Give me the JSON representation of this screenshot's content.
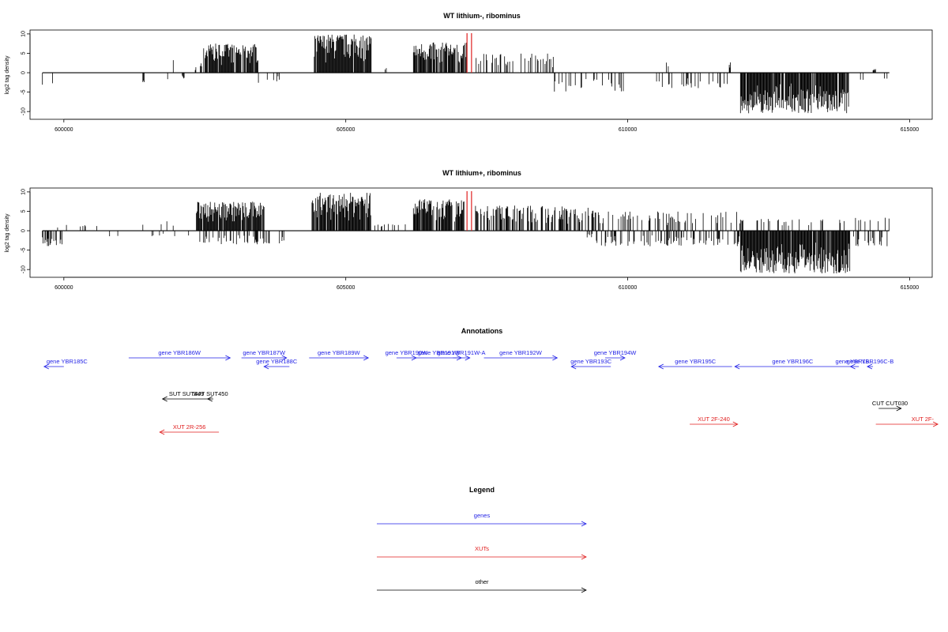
{
  "chart_data": [
    {
      "type": "bar",
      "title": "WT lithium-, ribominus",
      "ylabel": "log2 tag density",
      "xlabel": "",
      "xlim": [
        599400,
        615400
      ],
      "ylim": [
        -12,
        11
      ],
      "x_ticks": [
        "600000",
        "605000",
        "610000",
        "615000"
      ],
      "y_ticks": [
        "10",
        "5",
        "0",
        "-5",
        "-10"
      ],
      "baseline": 0,
      "highlight_color": "#e02020",
      "highlight_positions": [
        607150,
        607230
      ],
      "segments": [
        {
          "start": 599620,
          "end": 599850,
          "sign": -1,
          "max": 3.2,
          "density": 0.08
        },
        {
          "start": 601400,
          "end": 601430,
          "sign": -1,
          "max": 2.5,
          "density": 1
        },
        {
          "start": 601840,
          "end": 601850,
          "sign": -1,
          "max": 2.5,
          "density": 1
        },
        {
          "start": 601940,
          "end": 601950,
          "sign": 1,
          "max": 3.5,
          "density": 1
        },
        {
          "start": 602100,
          "end": 602140,
          "sign": -1,
          "max": 1.5,
          "density": 1
        },
        {
          "start": 602330,
          "end": 602350,
          "sign": 1,
          "max": 1.8,
          "density": 1
        },
        {
          "start": 602420,
          "end": 602450,
          "sign": 1,
          "max": 2.5,
          "density": 1
        },
        {
          "start": 602480,
          "end": 603450,
          "sign": 1,
          "max": 7.5,
          "density": 0.9
        },
        {
          "start": 603450,
          "end": 604100,
          "sign": -1,
          "max": 3.2,
          "density": 0.1
        },
        {
          "start": 604430,
          "end": 605450,
          "sign": 1,
          "max": 10,
          "density": 0.95
        },
        {
          "start": 605550,
          "end": 605800,
          "sign": 1,
          "max": 1.5,
          "density": 0.1
        },
        {
          "start": 606200,
          "end": 607150,
          "sign": 1,
          "max": 7.8,
          "density": 0.8
        },
        {
          "start": 607300,
          "end": 608700,
          "sign": 1,
          "max": 5,
          "density": 0.3
        },
        {
          "start": 608700,
          "end": 609950,
          "sign": -1,
          "max": 5,
          "density": 0.15
        },
        {
          "start": 609800,
          "end": 610800,
          "sign": 1,
          "max": 3,
          "density": 0.03
        },
        {
          "start": 610500,
          "end": 611800,
          "sign": -1,
          "max": 4,
          "density": 0.2
        },
        {
          "start": 611800,
          "end": 611830,
          "sign": 1,
          "max": 3,
          "density": 1
        },
        {
          "start": 612000,
          "end": 613920,
          "sign": -1,
          "max": 10.5,
          "density": 0.95
        },
        {
          "start": 614050,
          "end": 614600,
          "sign": -1,
          "max": 2,
          "density": 0.05
        },
        {
          "start": 614350,
          "end": 614400,
          "sign": 1,
          "max": 1,
          "density": 1
        }
      ]
    },
    {
      "type": "bar",
      "title": "WT lithium+, ribominus",
      "ylabel": "log2 tag density",
      "xlabel": "",
      "xlim": [
        599400,
        615400
      ],
      "ylim": [
        -12,
        11
      ],
      "x_ticks": [
        "600000",
        "605000",
        "610000",
        "615000"
      ],
      "y_ticks": [
        "10",
        "5",
        "0",
        "-5",
        "-10"
      ],
      "baseline": 0,
      "highlight_color": "#e02020",
      "highlight_positions": [
        607150,
        607230
      ],
      "segments": [
        {
          "start": 599620,
          "end": 600000,
          "sign": -1,
          "max": 4,
          "density": 0.6
        },
        {
          "start": 599620,
          "end": 600600,
          "sign": 1,
          "max": 1.5,
          "density": 0.1
        },
        {
          "start": 600800,
          "end": 602300,
          "sign": -1,
          "max": 1.5,
          "density": 0.05
        },
        {
          "start": 601400,
          "end": 602300,
          "sign": 1,
          "max": 2.5,
          "density": 0.05
        },
        {
          "start": 602350,
          "end": 603550,
          "sign": 1,
          "max": 7.5,
          "density": 0.9
        },
        {
          "start": 602400,
          "end": 604000,
          "sign": -1,
          "max": 3.5,
          "density": 0.3
        },
        {
          "start": 604400,
          "end": 605450,
          "sign": 1,
          "max": 9.8,
          "density": 0.95
        },
        {
          "start": 605450,
          "end": 606100,
          "sign": 1,
          "max": 1.8,
          "density": 0.1
        },
        {
          "start": 606200,
          "end": 607100,
          "sign": 1,
          "max": 8.2,
          "density": 0.9
        },
        {
          "start": 607300,
          "end": 609400,
          "sign": 1,
          "max": 6.5,
          "density": 0.5
        },
        {
          "start": 609000,
          "end": 609400,
          "sign": -1,
          "max": 2,
          "density": 0.1
        },
        {
          "start": 609400,
          "end": 612000,
          "sign": 1,
          "max": 5,
          "density": 0.25
        },
        {
          "start": 609400,
          "end": 612000,
          "sign": -1,
          "max": 4,
          "density": 0.35
        },
        {
          "start": 612000,
          "end": 613950,
          "sign": -1,
          "max": 11,
          "density": 0.95
        },
        {
          "start": 612000,
          "end": 613950,
          "sign": 1,
          "max": 3,
          "density": 0.1
        },
        {
          "start": 613950,
          "end": 614650,
          "sign": -1,
          "max": 4,
          "density": 0.3
        },
        {
          "start": 613950,
          "end": 614650,
          "sign": 1,
          "max": 3.5,
          "density": 0.15
        }
      ]
    }
  ],
  "annotations": {
    "title": "Annotations",
    "features": [
      {
        "label": "gene YBR185C",
        "category": "gene",
        "strand": "-",
        "start": 599650,
        "end": 600000,
        "row": 0,
        "label_anchor": "start"
      },
      {
        "label": "gene YBR186W",
        "category": "gene",
        "strand": "+",
        "start": 601150,
        "end": 602950,
        "row": 1,
        "label_anchor": "middle"
      },
      {
        "label": "gene YBR187W",
        "category": "gene",
        "strand": "+",
        "start": 603150,
        "end": 603950,
        "row": 1,
        "label_anchor": "middle"
      },
      {
        "label": "gene YBR188C",
        "category": "gene",
        "strand": "-",
        "start": 603550,
        "end": 604000,
        "row": 0,
        "label_anchor": "middle"
      },
      {
        "label": "gene YBR189W",
        "category": "gene",
        "strand": "+",
        "start": 604350,
        "end": 605400,
        "row": 1,
        "label_anchor": "middle"
      },
      {
        "label": "gene YBR190W",
        "category": "gene",
        "strand": "+",
        "start": 605900,
        "end": 606250,
        "row": 1,
        "label_anchor": "middle"
      },
      {
        "label": "gene YBR191W",
        "category": "gene",
        "strand": "+",
        "start": 606250,
        "end": 607050,
        "row": 1,
        "label_anchor": "middle"
      },
      {
        "label": "gene YBR191W-A",
        "category": "gene",
        "strand": "+",
        "start": 606900,
        "end": 607200,
        "row": 1,
        "label_anchor": "middle"
      },
      {
        "label": "gene YBR192W",
        "category": "gene",
        "strand": "+",
        "start": 607450,
        "end": 608750,
        "row": 1,
        "label_anchor": "middle"
      },
      {
        "label": "gene YBR193C",
        "category": "gene",
        "strand": "-",
        "start": 609000,
        "end": 609700,
        "row": 0,
        "label_anchor": "middle"
      },
      {
        "label": "gene YBR194W",
        "category": "gene",
        "strand": "+",
        "start": 609600,
        "end": 609950,
        "row": 1,
        "label_anchor": "middle"
      },
      {
        "label": "gene YBR195C",
        "category": "gene",
        "strand": "-",
        "start": 610550,
        "end": 611850,
        "row": 0,
        "label_anchor": "middle"
      },
      {
        "label": "gene YBR196C",
        "category": "gene",
        "strand": "-",
        "start": 611900,
        "end": 613950,
        "row": 0,
        "label_anchor": "middle"
      },
      {
        "label": "gene YBR19...",
        "category": "gene",
        "strand": "-",
        "start": 613950,
        "end": 614100,
        "row": 0,
        "label_anchor": "middle"
      },
      {
        "label": "gene YBR196C-B",
        "category": "gene",
        "strand": "-",
        "start": 614250,
        "end": 614350,
        "row": 0,
        "label_anchor": "middle"
      },
      {
        "label": "SUT SUT449",
        "category": "other",
        "strand": "-",
        "start": 601750,
        "end": 602600,
        "row": 2,
        "label_anchor": "middle"
      },
      {
        "label": "SUT SUT450",
        "category": "other",
        "strand": "-",
        "start": 602550,
        "end": 602650,
        "row": 2,
        "label_anchor": "middle"
      },
      {
        "label": "CUT CUT030",
        "category": "other",
        "strand": "+",
        "start": 614450,
        "end": 614850,
        "row": 3,
        "label_anchor": "middle"
      },
      {
        "label": "XUT 2R-256",
        "category": "xut",
        "strand": "-",
        "start": 601700,
        "end": 602750,
        "row": 4,
        "label_anchor": "middle"
      },
      {
        "label": "XUT 2F-240",
        "category": "xut",
        "strand": "+",
        "start": 611100,
        "end": 611950,
        "row": 4,
        "label_anchor": "middle"
      },
      {
        "label": "XUT 2F-",
        "category": "xut",
        "strand": "+",
        "start": 614400,
        "end": 615500,
        "row": 4,
        "label_anchor": "end"
      }
    ]
  },
  "legend": {
    "title": "Legend",
    "items": [
      {
        "label": "genes",
        "category": "gene"
      },
      {
        "label": "XUTs",
        "category": "xut"
      },
      {
        "label": "other",
        "category": "other"
      }
    ]
  },
  "colors": {
    "gene": "#1f1fe6",
    "xut": "#e01c1c",
    "other": "#000000",
    "bars": "#000000",
    "highlight": "#e02020"
  }
}
